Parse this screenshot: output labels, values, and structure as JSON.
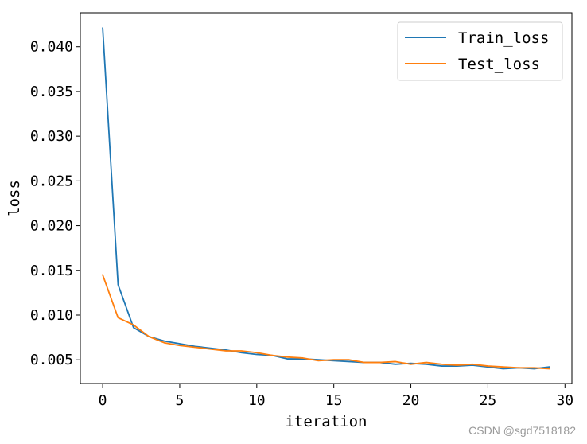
{
  "chart_data": {
    "type": "line",
    "xlabel": "iteration",
    "ylabel": "loss",
    "xlim": [
      -1.45,
      30.45
    ],
    "ylim": [
      0.00235,
      0.0438
    ],
    "xticks": [
      0,
      5,
      10,
      15,
      20,
      25,
      30
    ],
    "xtick_labels": [
      "0",
      "5",
      "10",
      "15",
      "20",
      "25",
      "30"
    ],
    "yticks": [
      0.005,
      0.01,
      0.015,
      0.02,
      0.025,
      0.03,
      0.035,
      0.04
    ],
    "ytick_labels": [
      "0.005",
      "0.010",
      "0.015",
      "0.020",
      "0.025",
      "0.030",
      "0.035",
      "0.040"
    ],
    "grid": false,
    "legend_position": "top-right",
    "x": [
      0,
      1,
      2,
      3,
      4,
      5,
      6,
      7,
      8,
      9,
      10,
      11,
      12,
      13,
      14,
      15,
      16,
      17,
      18,
      19,
      20,
      21,
      22,
      23,
      24,
      25,
      26,
      27,
      28,
      29
    ],
    "series": [
      {
        "name": "Train_loss",
        "color": "#1f77b4",
        "values": [
          0.0421,
          0.0134,
          0.0086,
          0.0076,
          0.0071,
          0.0068,
          0.0065,
          0.0063,
          0.0061,
          0.0058,
          0.0056,
          0.0055,
          0.0051,
          0.0051,
          0.005,
          0.0049,
          0.0048,
          0.0047,
          0.0047,
          0.0045,
          0.0046,
          0.0045,
          0.0043,
          0.0043,
          0.0044,
          0.0042,
          0.004,
          0.0041,
          0.004,
          0.0042
        ]
      },
      {
        "name": "Test_loss",
        "color": "#ff7f0e",
        "values": [
          0.0145,
          0.0097,
          0.0089,
          0.0076,
          0.0069,
          0.0066,
          0.0064,
          0.0062,
          0.006,
          0.006,
          0.0058,
          0.0055,
          0.0053,
          0.0052,
          0.0049,
          0.005,
          0.005,
          0.0047,
          0.0047,
          0.0048,
          0.0045,
          0.0047,
          0.0045,
          0.0044,
          0.0045,
          0.0043,
          0.0042,
          0.0041,
          0.0041,
          0.004
        ]
      }
    ]
  },
  "watermark": "CSDN @sgd7518182"
}
